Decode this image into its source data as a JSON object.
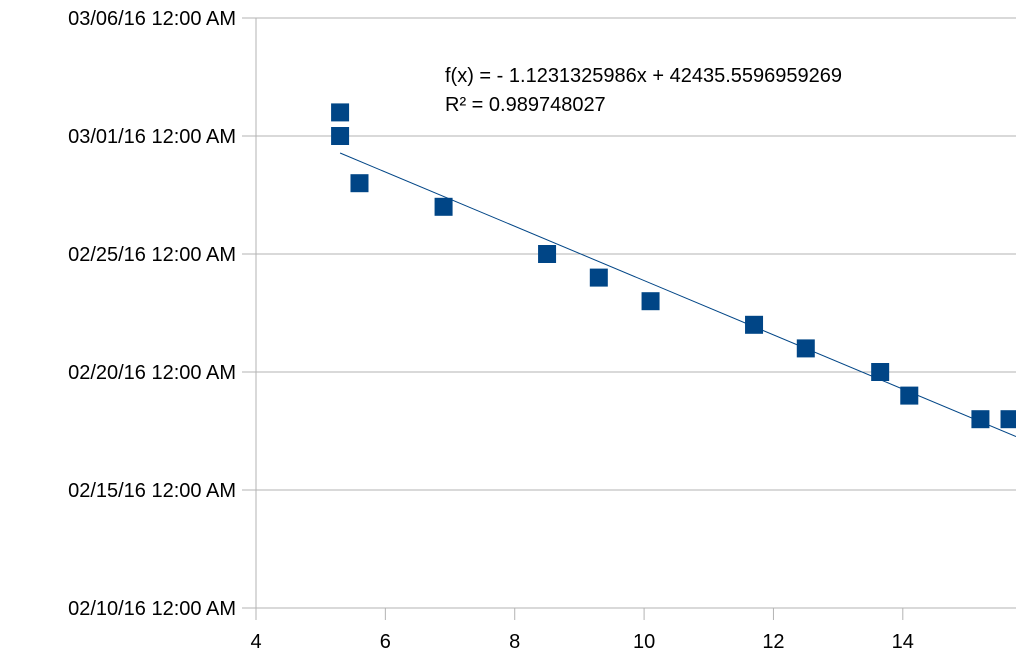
{
  "chart_data": {
    "type": "scatter",
    "title": "",
    "xlabel": "",
    "ylabel": "",
    "xlim": [
      4,
      15.75
    ],
    "ylim": [
      "02/10/16",
      "03/06/16"
    ],
    "x_ticks": [
      "4",
      "6",
      "8",
      "10",
      "12",
      "14"
    ],
    "y_ticks": [
      "02/10/16 12:00 AM",
      "02/15/16 12:00 AM",
      "02/20/16 12:00 AM",
      "02/25/16 12:00 AM",
      "03/01/16 12:00 AM",
      "03/06/16 12:00 AM"
    ],
    "grid": {
      "horizontal": true,
      "vertical": false
    },
    "legend": "none",
    "series": [
      {
        "color": "#004586",
        "marker": "square",
        "points": [
          {
            "x": 5.3,
            "y": "03/02/16"
          },
          {
            "x": 5.3,
            "y": "03/01/16"
          },
          {
            "x": 5.6,
            "y": "02/28/16"
          },
          {
            "x": 6.9,
            "y": "02/27/16"
          },
          {
            "x": 8.5,
            "y": "02/25/16"
          },
          {
            "x": 9.3,
            "y": "02/24/16"
          },
          {
            "x": 10.1,
            "y": "02/23/16"
          },
          {
            "x": 11.7,
            "y": "02/22/16"
          },
          {
            "x": 12.5,
            "y": "02/21/16"
          },
          {
            "x": 13.65,
            "y": "02/20/16"
          },
          {
            "x": 14.1,
            "y": "02/19/16"
          },
          {
            "x": 15.2,
            "y": "02/18/16"
          },
          {
            "x": 15.65,
            "y": "02/18/16"
          }
        ]
      }
    ],
    "trendline": {
      "type": "linear",
      "color": "#004586",
      "equation": "f(x) =  - 1.1231325986x + 42435.5596959269",
      "r_squared": "R² = 0.989748027"
    }
  }
}
